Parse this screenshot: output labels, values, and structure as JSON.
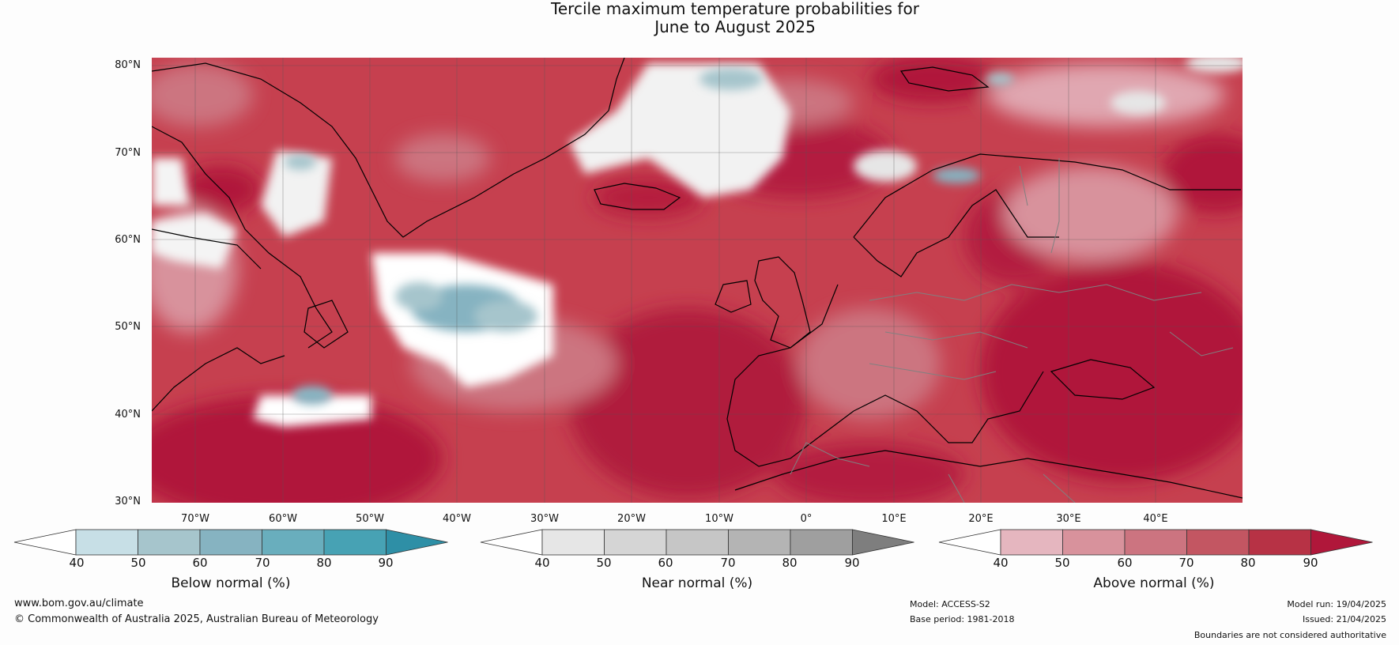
{
  "title": {
    "line1": "Tercile maximum temperature probabilities for",
    "line2": "June to August 2025"
  },
  "axes": {
    "lat_labels": [
      "80°N",
      "70°N",
      "60°N",
      "50°N",
      "40°N",
      "30°N"
    ],
    "lon_labels": [
      "70°W",
      "60°W",
      "50°W",
      "40°W",
      "30°W",
      "20°W",
      "10°W",
      "0°",
      "10°E",
      "20°E",
      "30°E",
      "40°E"
    ]
  },
  "legends": [
    {
      "title": "Below normal (%)",
      "ticks": [
        "40",
        "50",
        "60",
        "70",
        "80",
        "90"
      ],
      "colors": [
        "#ffffff",
        "#c7dfe6",
        "#a6c5cc",
        "#86b3c1",
        "#69aebd",
        "#47a2b4",
        "#2e8fa6"
      ]
    },
    {
      "title": "Near normal (%)",
      "ticks": [
        "40",
        "50",
        "60",
        "70",
        "80",
        "90"
      ],
      "colors": [
        "#ffffff",
        "#e6e6e6",
        "#d5d5d5",
        "#c6c6c6",
        "#b4b4b4",
        "#9f9f9f",
        "#7e7e7e"
      ]
    },
    {
      "title": "Above normal (%)",
      "ticks": [
        "40",
        "50",
        "60",
        "70",
        "80",
        "90"
      ],
      "colors": [
        "#ffffff",
        "#e5b6bf",
        "#d8929c",
        "#cc7480",
        "#c35662",
        "#b73245",
        "#b0173a"
      ]
    }
  ],
  "map_colors": {
    "land_outline": "#000000",
    "border": "#808080",
    "base_red": "#c6404f"
  },
  "footer": {
    "url": "www.bom.gov.au/climate",
    "copyright": "© Commonwealth of Australia 2025, Australian Bureau of Meteorology",
    "model": "Model: ACCESS-S2",
    "base_period": "Base period: 1981-2018",
    "model_run": "Model run: 19/04/2025",
    "issued": "Issued: 21/04/2025",
    "disclaimer": "Boundaries are not considered authoritative"
  }
}
